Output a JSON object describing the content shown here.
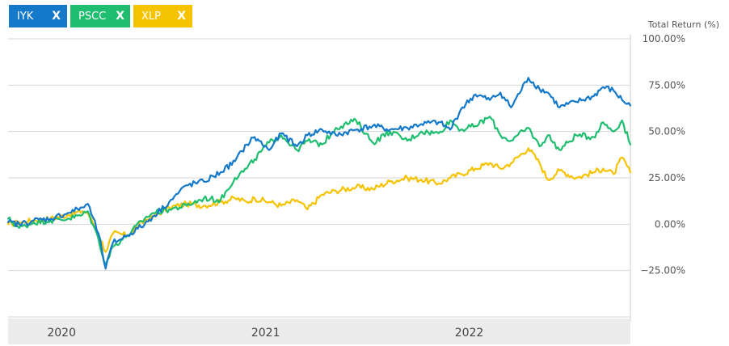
{
  "legend": {
    "chips": [
      {
        "label": "IYK",
        "color": "#1479c9",
        "remove": "X"
      },
      {
        "label": "PSCC",
        "color": "#1fbd6f",
        "remove": "X"
      },
      {
        "label": "XLP",
        "color": "#f6c300",
        "remove": "X"
      }
    ]
  },
  "chart_data": {
    "type": "line",
    "ylabel": "Total Return (%)",
    "ylim": [
      -50,
      100
    ],
    "yticks": [
      -25,
      0,
      25,
      50,
      75,
      100
    ],
    "ytick_labels": [
      "−25.00%",
      "0.00%",
      "25.00%",
      "50.00%",
      "75.00%",
      "100.00%"
    ],
    "xlim": [
      "2019-09-30",
      "2022-10-20"
    ],
    "xticks": [
      {
        "date": "2020-01-01",
        "label": "2020"
      },
      {
        "date": "2021-01-01",
        "label": "2021"
      },
      {
        "date": "2022-01-01",
        "label": "2022"
      }
    ],
    "grid": true,
    "legend_position": "top-left",
    "series": [
      {
        "name": "IYK",
        "color": "#1479c9",
        "points": [
          [
            "2019-09-30",
            1
          ],
          [
            "2019-10-20",
            0
          ],
          [
            "2019-11-15",
            2
          ],
          [
            "2019-12-15",
            3
          ],
          [
            "2020-01-15",
            6
          ],
          [
            "2020-02-10",
            9
          ],
          [
            "2020-02-20",
            11
          ],
          [
            "2020-03-10",
            -5
          ],
          [
            "2020-03-23",
            -24
          ],
          [
            "2020-04-05",
            -10
          ],
          [
            "2020-05-01",
            -6
          ],
          [
            "2020-06-01",
            0
          ],
          [
            "2020-06-15",
            4
          ],
          [
            "2020-07-15",
            12
          ],
          [
            "2020-08-15",
            21
          ],
          [
            "2020-09-15",
            23
          ],
          [
            "2020-10-15",
            28
          ],
          [
            "2020-11-10",
            34
          ],
          [
            "2020-12-01",
            43
          ],
          [
            "2020-12-15",
            47
          ],
          [
            "2021-01-10",
            40
          ],
          [
            "2021-02-01",
            49
          ],
          [
            "2021-03-01",
            42
          ],
          [
            "2021-03-20",
            48
          ],
          [
            "2021-04-15",
            51
          ],
          [
            "2021-05-10",
            48
          ],
          [
            "2021-06-15",
            51
          ],
          [
            "2021-07-15",
            53
          ],
          [
            "2021-08-15",
            51
          ],
          [
            "2021-09-15",
            52
          ],
          [
            "2021-10-10",
            54
          ],
          [
            "2021-11-10",
            55
          ],
          [
            "2021-12-01",
            51
          ],
          [
            "2021-12-20",
            62
          ],
          [
            "2022-01-15",
            70
          ],
          [
            "2022-02-10",
            67
          ],
          [
            "2022-03-01",
            71
          ],
          [
            "2022-03-20",
            63
          ],
          [
            "2022-04-20",
            79
          ],
          [
            "2022-05-10",
            73
          ],
          [
            "2022-05-25",
            71
          ],
          [
            "2022-06-15",
            63
          ],
          [
            "2022-07-15",
            66
          ],
          [
            "2022-08-15",
            69
          ],
          [
            "2022-09-01",
            74
          ],
          [
            "2022-09-20",
            72
          ],
          [
            "2022-10-05",
            67
          ],
          [
            "2022-10-20",
            64
          ]
        ]
      },
      {
        "name": "PSCC",
        "color": "#1fbd6f",
        "points": [
          [
            "2019-09-30",
            3
          ],
          [
            "2019-10-20",
            -2
          ],
          [
            "2019-11-15",
            1
          ],
          [
            "2019-12-15",
            2
          ],
          [
            "2020-01-15",
            3
          ],
          [
            "2020-02-10",
            5
          ],
          [
            "2020-02-20",
            7
          ],
          [
            "2020-03-10",
            -8
          ],
          [
            "2020-03-23",
            -22
          ],
          [
            "2020-04-05",
            -12
          ],
          [
            "2020-05-01",
            -6
          ],
          [
            "2020-06-01",
            3
          ],
          [
            "2020-06-15",
            6
          ],
          [
            "2020-07-15",
            8
          ],
          [
            "2020-08-15",
            10
          ],
          [
            "2020-09-15",
            14
          ],
          [
            "2020-10-15",
            13
          ],
          [
            "2020-11-10",
            25
          ],
          [
            "2020-12-01",
            30
          ],
          [
            "2020-12-15",
            35
          ],
          [
            "2021-01-10",
            44
          ],
          [
            "2021-02-01",
            48
          ],
          [
            "2021-03-01",
            40
          ],
          [
            "2021-03-20",
            45
          ],
          [
            "2021-04-15",
            43
          ],
          [
            "2021-05-10",
            52
          ],
          [
            "2021-06-15",
            56
          ],
          [
            "2021-07-15",
            44
          ],
          [
            "2021-08-15",
            50
          ],
          [
            "2021-09-15",
            45
          ],
          [
            "2021-10-10",
            50
          ],
          [
            "2021-11-10",
            49
          ],
          [
            "2021-12-01",
            56
          ],
          [
            "2021-12-20",
            51
          ],
          [
            "2022-01-15",
            53
          ],
          [
            "2022-02-10",
            58
          ],
          [
            "2022-03-01",
            48
          ],
          [
            "2022-03-20",
            45
          ],
          [
            "2022-04-20",
            52
          ],
          [
            "2022-05-10",
            42
          ],
          [
            "2022-05-25",
            48
          ],
          [
            "2022-06-15",
            40
          ],
          [
            "2022-07-15",
            48
          ],
          [
            "2022-08-15",
            47
          ],
          [
            "2022-09-01",
            55
          ],
          [
            "2022-09-20",
            50
          ],
          [
            "2022-10-05",
            56
          ],
          [
            "2022-10-20",
            43
          ]
        ]
      },
      {
        "name": "XLP",
        "color": "#f6c300",
        "points": [
          [
            "2019-09-30",
            0
          ],
          [
            "2019-10-20",
            1
          ],
          [
            "2019-11-15",
            2
          ],
          [
            "2019-12-15",
            3
          ],
          [
            "2020-01-15",
            5
          ],
          [
            "2020-02-10",
            7
          ],
          [
            "2020-02-20",
            6
          ],
          [
            "2020-03-10",
            -5
          ],
          [
            "2020-03-23",
            -15
          ],
          [
            "2020-04-05",
            -5
          ],
          [
            "2020-05-01",
            -6
          ],
          [
            "2020-06-01",
            2
          ],
          [
            "2020-06-15",
            4
          ],
          [
            "2020-07-15",
            9
          ],
          [
            "2020-08-15",
            11
          ],
          [
            "2020-09-15",
            10
          ],
          [
            "2020-10-15",
            12
          ],
          [
            "2020-11-10",
            14
          ],
          [
            "2020-12-01",
            12
          ],
          [
            "2020-12-15",
            14
          ],
          [
            "2021-01-10",
            12
          ],
          [
            "2021-02-01",
            10
          ],
          [
            "2021-03-01",
            13
          ],
          [
            "2021-03-20",
            8
          ],
          [
            "2021-04-15",
            16
          ],
          [
            "2021-05-10",
            18
          ],
          [
            "2021-06-15",
            20
          ],
          [
            "2021-07-15",
            19
          ],
          [
            "2021-08-15",
            23
          ],
          [
            "2021-09-15",
            25
          ],
          [
            "2021-10-10",
            24
          ],
          [
            "2021-11-10",
            22
          ],
          [
            "2021-12-01",
            25
          ],
          [
            "2021-12-20",
            27
          ],
          [
            "2022-01-15",
            30
          ],
          [
            "2022-02-10",
            33
          ],
          [
            "2022-03-01",
            30
          ],
          [
            "2022-03-20",
            33
          ],
          [
            "2022-04-20",
            41
          ],
          [
            "2022-05-10",
            33
          ],
          [
            "2022-05-25",
            24
          ],
          [
            "2022-06-15",
            29
          ],
          [
            "2022-07-15",
            25
          ],
          [
            "2022-08-15",
            28
          ],
          [
            "2022-09-01",
            30
          ],
          [
            "2022-09-20",
            27
          ],
          [
            "2022-10-05",
            36
          ],
          [
            "2022-10-20",
            28
          ]
        ]
      }
    ]
  }
}
